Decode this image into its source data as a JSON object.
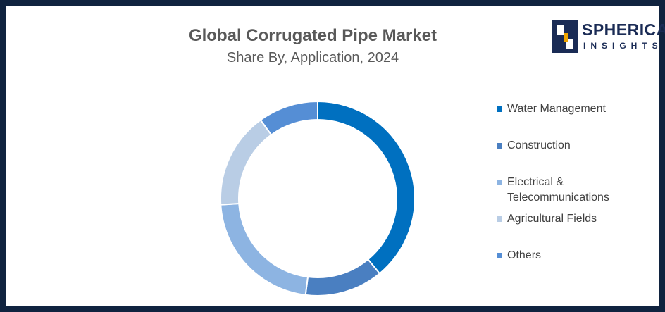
{
  "chart_data": {
    "type": "donut",
    "title": "Global Corrugated Pipe Market",
    "subtitle": "Share By, Application, 2024",
    "categories": [
      "Water Management",
      "Construction",
      "Electrical & Telecommunications",
      "Agricultural Fields",
      "Others"
    ],
    "values": [
      39,
      13,
      22,
      16,
      10
    ],
    "colors": [
      "#0070c0",
      "#4a7fc1",
      "#8db4e2",
      "#b9cde5",
      "#558ed5"
    ],
    "legend": "right"
  },
  "logo": {
    "line1": "SPHERICAL",
    "line2": "INSIGHTS"
  }
}
